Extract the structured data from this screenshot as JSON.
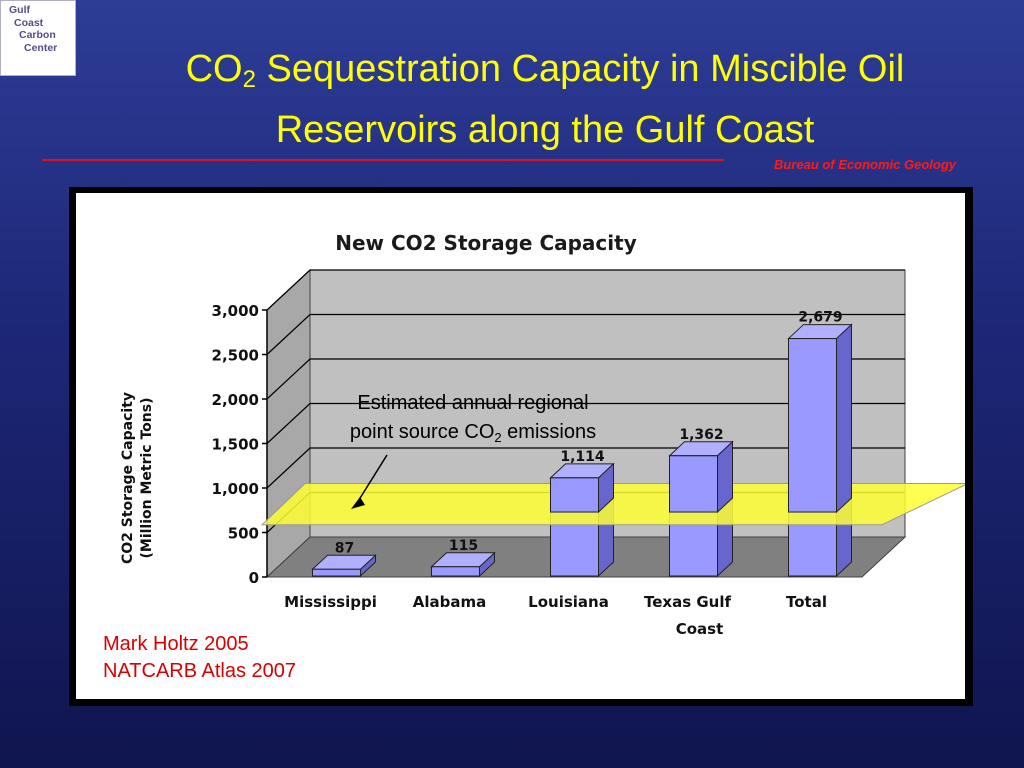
{
  "logo": {
    "lines": [
      "Gulf",
      "Coast",
      "Carbon",
      "Center"
    ]
  },
  "title": {
    "part1": "CO",
    "subscript": "2",
    "part2": " Sequestration Capacity in Miscible Oil",
    "line2": "Reservoirs along the Gulf Coast"
  },
  "org": "Bureau of Economic Geology",
  "chart_data": {
    "type": "bar",
    "title": "New CO2 Storage Capacity",
    "ylabel_line1": "CO2 Storage Capacity",
    "ylabel_line2": "(Million Metric Tons)",
    "categories": [
      "Mississippi",
      "Alabama",
      "Louisiana",
      "Texas Gulf Coast",
      "Total"
    ],
    "category_lines": [
      [
        "Mississippi"
      ],
      [
        "Alabama"
      ],
      [
        "Louisiana"
      ],
      [
        "Texas Gulf",
        "Coast"
      ],
      [
        "Total"
      ]
    ],
    "values": [
      87,
      115,
      1114,
      1362,
      2679
    ],
    "value_labels": [
      "87",
      "115",
      "1,114",
      "1,362",
      "2,679"
    ],
    "ylim": [
      0,
      3000
    ],
    "yticks": [
      0,
      500,
      1000,
      1500,
      2000,
      2500,
      3000
    ],
    "ytick_labels": [
      "0",
      "500",
      "1,000",
      "1,500",
      "2,000",
      "2,500",
      "3,000"
    ],
    "grid": true,
    "band_value": 800,
    "colors": {
      "bar_face": "#9999ff",
      "bar_side": "#6666cc",
      "bar_top": "#b0b0ff",
      "wall": "#c0c0c0",
      "floor": "#808080",
      "band": "#ffff33"
    }
  },
  "annotation": {
    "line1": "Estimated annual regional",
    "line2_part1": "point source CO",
    "line2_sub": "2",
    "line2_part2": " emissions"
  },
  "sources": [
    "Mark Holtz 2005",
    "NATCARB Atlas 2007"
  ]
}
